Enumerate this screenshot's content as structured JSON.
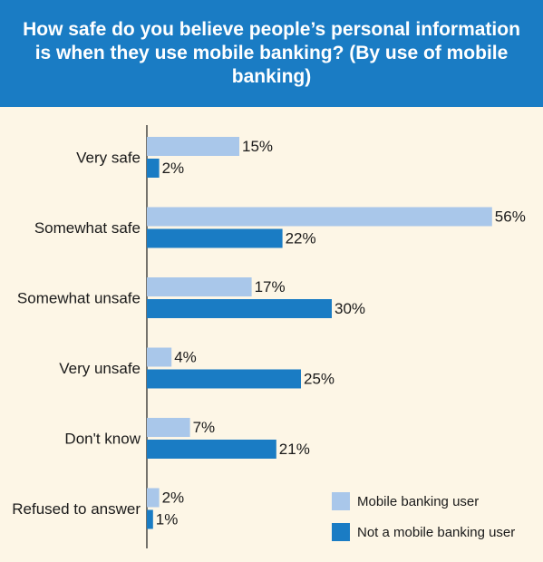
{
  "colors": {
    "header_bg": "#1a7cc4",
    "background": "#fdf6e6",
    "mobile_user": "#a9c7ea",
    "not_mobile_user": "#1a7cc4"
  },
  "chart_data": {
    "type": "bar",
    "orientation": "horizontal",
    "title": "How safe do you believe people’s personal information is when they use mobile banking? (By use of mobile banking)",
    "categories": [
      "Very safe",
      "Somewhat safe",
      "Somewhat unsafe",
      "Very unsafe",
      "Don't know",
      "Refused to answer"
    ],
    "series": [
      {
        "name": "Mobile banking user",
        "values": [
          15,
          56,
          17,
          4,
          7,
          2
        ]
      },
      {
        "name": "Not a mobile banking user",
        "values": [
          2,
          22,
          30,
          25,
          21,
          1
        ]
      }
    ],
    "value_suffix": "%",
    "xlim": [
      0,
      60
    ],
    "grid": false,
    "legend_position": "bottom-right"
  }
}
